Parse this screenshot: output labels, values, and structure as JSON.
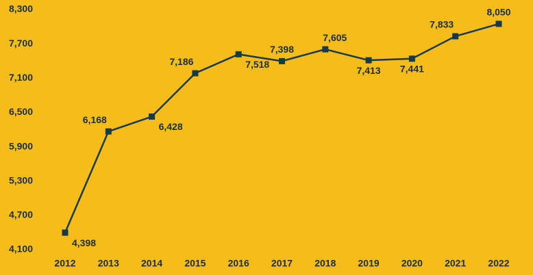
{
  "chart_data": {
    "type": "line",
    "categories": [
      "2012",
      "2013",
      "2014",
      "2015",
      "2016",
      "2017",
      "2018",
      "2019",
      "2020",
      "2021",
      "2022"
    ],
    "values": [
      4398,
      6168,
      6428,
      7186,
      7518,
      7398,
      7605,
      7413,
      7441,
      7833,
      8050
    ],
    "value_labels": [
      "4,398",
      "6,168",
      "6,428",
      "7,186",
      "7,518",
      "7,398",
      "7,605",
      "7,413",
      "7,441",
      "7,833",
      "8,050"
    ],
    "color": "#173a4a",
    "ylim": [
      4100,
      8300
    ],
    "yticks": [
      {
        "value": 4100,
        "label": "4,100"
      },
      {
        "value": 4700,
        "label": "4,700"
      },
      {
        "value": 5300,
        "label": "5,300"
      },
      {
        "value": 5900,
        "label": "5,900"
      },
      {
        "value": 6500,
        "label": "6,500"
      },
      {
        "value": 7100,
        "label": "7,100"
      },
      {
        "value": 7700,
        "label": "7,700"
      },
      {
        "value": 8300,
        "label": "8,300"
      }
    ],
    "grid": false
  }
}
